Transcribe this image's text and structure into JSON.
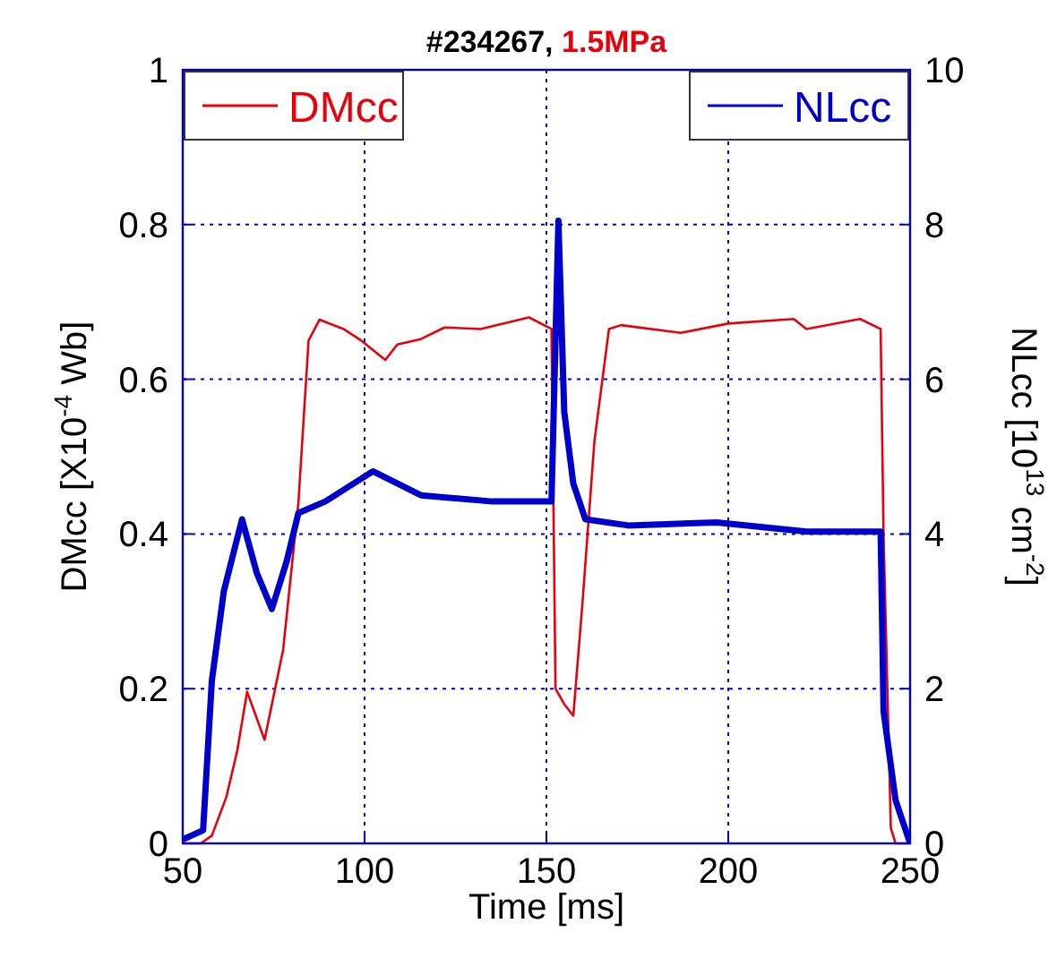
{
  "chart_data": {
    "type": "line",
    "title": "#234267, 1.5MPa",
    "xlabel": "Time [ms]",
    "ylabel": "DMcc [X10$^{-4}$ Wb]",
    "y2label": "NLcc [10$^{13}$ cm$^{-2}$]",
    "xlim": [
      50,
      250
    ],
    "xticks": [
      50,
      100,
      150,
      200,
      250
    ],
    "ylim": [
      0,
      1
    ],
    "yticks": [
      0,
      0.2,
      0.4,
      0.6,
      0.8,
      1
    ],
    "y2lim": [
      0,
      10
    ],
    "y2ticks": [
      0,
      2,
      4,
      6,
      8,
      10
    ],
    "grid": true,
    "legend": "top",
    "line_style": "solid",
    "series": [
      {
        "name": "DMcc",
        "color": "#e8000b",
        "x": [
          50,
          55,
          58,
          62,
          65,
          67.7,
          72.5,
          77.6,
          81.8,
          84.6,
          87.6,
          94.2,
          99.1,
          105.7,
          109,
          115.5,
          122,
          131.9,
          145.2,
          151.4,
          152.5,
          154.9,
          157.4,
          159.9,
          163.2,
          167.2,
          170.5,
          186.9,
          200,
          218,
          221.5,
          236.2,
          241.9,
          242.7,
          244.7,
          246,
          250
        ],
        "values": [
          0,
          0,
          0.01,
          0.06,
          0.12,
          0.196,
          0.134,
          0.25,
          0.44,
          0.65,
          0.677,
          0.665,
          0.65,
          0.625,
          0.645,
          0.652,
          0.667,
          0.665,
          0.68,
          0.665,
          0.2,
          0.18,
          0.165,
          0.31,
          0.52,
          0.665,
          0.67,
          0.66,
          0.672,
          0.678,
          0.665,
          0.678,
          0.665,
          0.4,
          0.02,
          0,
          0
        ]
      },
      {
        "name": "NLcc",
        "color": "#0000cc",
        "axis": "y2",
        "x": [
          50,
          55.6,
          58,
          61.3,
          66.3,
          70.4,
          74.5,
          78.6,
          81.8,
          89.2,
          102.3,
          115.5,
          135.2,
          151.4,
          153.3,
          154.9,
          157.4,
          160.7,
          172.5,
          196.8,
          221.5,
          241.9,
          242.7,
          246,
          250
        ],
        "values": [
          0.05,
          0.17,
          2.1,
          3.26,
          4.19,
          3.49,
          3.03,
          3.65,
          4.27,
          4.42,
          4.81,
          4.5,
          4.42,
          4.42,
          8.05,
          5.58,
          4.65,
          4.19,
          4.11,
          4.15,
          4.03,
          4.03,
          1.71,
          0.56,
          0
        ]
      }
    ]
  }
}
